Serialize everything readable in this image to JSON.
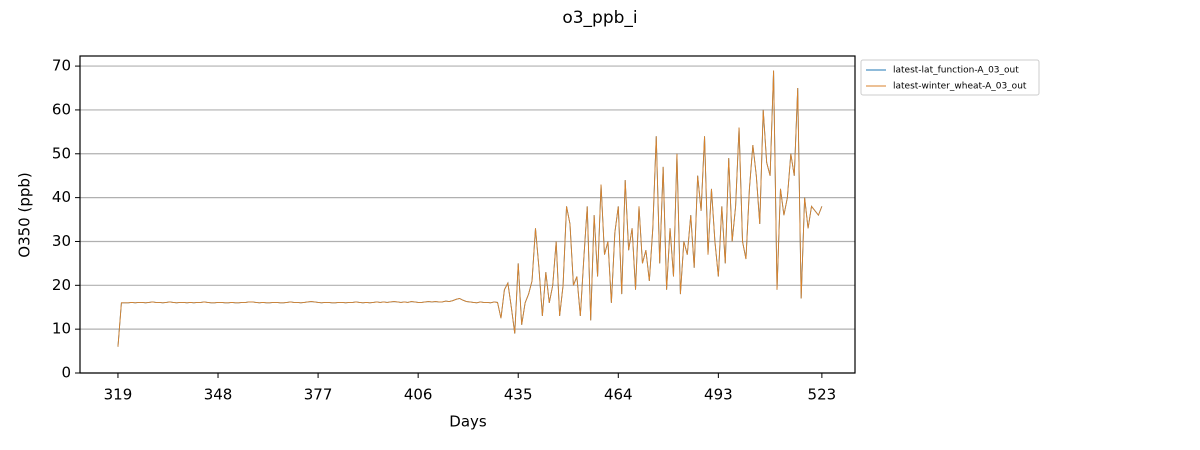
{
  "chart_data": {
    "type": "line",
    "title": "o3_ppb_i",
    "x_label": "Days",
    "y_label": "O350 (ppb)",
    "xlim": [
      308,
      532.6
    ],
    "ylim": [
      0,
      72.3
    ],
    "xticks": [
      319,
      348,
      377,
      406,
      435,
      464,
      493,
      523
    ],
    "yticks": [
      0,
      10,
      20,
      30,
      40,
      50,
      60,
      70
    ],
    "grid": true,
    "legend": "outside upper right",
    "x": [
      319,
      320,
      321,
      322,
      323,
      324,
      325,
      326,
      327,
      328,
      329,
      330,
      331,
      332,
      333,
      334,
      335,
      336,
      337,
      338,
      339,
      340,
      341,
      342,
      343,
      344,
      345,
      346,
      347,
      348,
      349,
      350,
      351,
      352,
      353,
      354,
      355,
      356,
      357,
      358,
      359,
      360,
      361,
      362,
      363,
      364,
      365,
      366,
      367,
      368,
      369,
      370,
      371,
      372,
      373,
      374,
      375,
      376,
      377,
      378,
      379,
      380,
      381,
      382,
      383,
      384,
      385,
      386,
      387,
      388,
      389,
      390,
      391,
      392,
      393,
      394,
      395,
      396,
      397,
      398,
      399,
      400,
      401,
      402,
      403,
      404,
      405,
      406,
      407,
      408,
      409,
      410,
      411,
      412,
      413,
      414,
      415,
      416,
      417,
      418,
      419,
      420,
      421,
      422,
      423,
      424,
      425,
      426,
      427,
      428,
      429,
      430,
      431,
      432,
      433,
      434,
      435,
      436,
      437,
      438,
      439,
      440,
      441,
      442,
      443,
      444,
      445,
      446,
      447,
      448,
      449,
      450,
      451,
      452,
      453,
      454,
      455,
      456,
      457,
      458,
      459,
      460,
      461,
      462,
      463,
      464,
      465,
      466,
      467,
      468,
      469,
      470,
      471,
      472,
      473,
      474,
      475,
      476,
      477,
      478,
      479,
      480,
      481,
      482,
      483,
      484,
      485,
      486,
      487,
      488,
      489,
      490,
      491,
      492,
      493,
      494,
      495,
      496,
      497,
      498,
      499,
      500,
      501,
      502,
      503,
      504,
      505,
      506,
      507,
      508,
      509,
      510,
      511,
      512,
      513,
      514,
      515,
      516,
      517,
      518,
      519,
      520,
      521,
      522,
      523
    ],
    "series": [
      {
        "name": "latest-lat_function-A_03_out",
        "color": "#1f77b4",
        "values": [
          6,
          16,
          16.0,
          16.0,
          16.1,
          16.0,
          16.1,
          16.1,
          16.0,
          16.1,
          16.2,
          16.1,
          16.1,
          16.0,
          16.1,
          16.2,
          16.1,
          16.0,
          16.1,
          16.1,
          16.0,
          16.1,
          16.0,
          16.1,
          16.1,
          16.2,
          16.1,
          16.0,
          16.0,
          16.1,
          16.1,
          16.0,
          16.0,
          16.1,
          16.0,
          16.0,
          16.1,
          16.1,
          16.2,
          16.2,
          16.1,
          16.0,
          16.1,
          16.0,
          16.0,
          16.1,
          16.1,
          16.0,
          16.0,
          16.1,
          16.2,
          16.1,
          16.1,
          16.0,
          16.1,
          16.2,
          16.3,
          16.2,
          16.1,
          16.0,
          16.1,
          16.1,
          16.0,
          16.0,
          16.1,
          16.1,
          16.0,
          16.1,
          16.1,
          16.2,
          16.1,
          16.0,
          16.1,
          16.0,
          16.1,
          16.2,
          16.1,
          16.2,
          16.1,
          16.2,
          16.3,
          16.2,
          16.1,
          16.2,
          16.1,
          16.3,
          16.2,
          16.1,
          16.1,
          16.2,
          16.3,
          16.2,
          16.3,
          16.2,
          16.2,
          16.4,
          16.3,
          16.5,
          16.8,
          17.0,
          16.6,
          16.3,
          16.2,
          16.1,
          16.0,
          16.2,
          16.1,
          16.1,
          16.0,
          16.2,
          16.1,
          12.5,
          19,
          20.5,
          15,
          9,
          25,
          11,
          16,
          18,
          21,
          33,
          24,
          13,
          23,
          16,
          20,
          30,
          13,
          20,
          38,
          34,
          20,
          22,
          13,
          26,
          38,
          12,
          36,
          22,
          43,
          27,
          30,
          16,
          32,
          38,
          18,
          44,
          28,
          33,
          19,
          38,
          25,
          28,
          21,
          33,
          54,
          25,
          47,
          19,
          33,
          22,
          50,
          18,
          30,
          27,
          36,
          24,
          45,
          37,
          54,
          27,
          42,
          30,
          22,
          38,
          25,
          49,
          30,
          38,
          56,
          30,
          26,
          42,
          52,
          45,
          34,
          60,
          48,
          45,
          69,
          19,
          42,
          36,
          40,
          50,
          45,
          65,
          17,
          40,
          33,
          38,
          37,
          36,
          38
        ]
      },
      {
        "name": "latest-winter_wheat-A_03_out",
        "color": "#d9822b",
        "values": [
          6,
          16,
          16.0,
          16.0,
          16.1,
          16.0,
          16.1,
          16.1,
          16.0,
          16.1,
          16.2,
          16.1,
          16.1,
          16.0,
          16.1,
          16.2,
          16.1,
          16.0,
          16.1,
          16.1,
          16.0,
          16.1,
          16.0,
          16.1,
          16.1,
          16.2,
          16.1,
          16.0,
          16.0,
          16.1,
          16.1,
          16.0,
          16.0,
          16.1,
          16.0,
          16.0,
          16.1,
          16.1,
          16.2,
          16.2,
          16.1,
          16.0,
          16.1,
          16.0,
          16.0,
          16.1,
          16.1,
          16.0,
          16.0,
          16.1,
          16.2,
          16.1,
          16.1,
          16.0,
          16.1,
          16.2,
          16.3,
          16.2,
          16.1,
          16.0,
          16.1,
          16.1,
          16.0,
          16.0,
          16.1,
          16.1,
          16.0,
          16.1,
          16.1,
          16.2,
          16.1,
          16.0,
          16.1,
          16.0,
          16.1,
          16.2,
          16.1,
          16.2,
          16.1,
          16.2,
          16.3,
          16.2,
          16.1,
          16.2,
          16.1,
          16.3,
          16.2,
          16.1,
          16.1,
          16.2,
          16.3,
          16.2,
          16.3,
          16.2,
          16.2,
          16.4,
          16.3,
          16.5,
          16.8,
          17.0,
          16.6,
          16.3,
          16.2,
          16.1,
          16.0,
          16.2,
          16.1,
          16.1,
          16.0,
          16.2,
          16.1,
          12.5,
          19,
          20.5,
          15,
          9,
          25,
          11,
          16,
          18,
          21,
          33,
          24,
          13,
          23,
          16,
          20,
          30,
          13,
          20,
          38,
          34,
          20,
          22,
          13,
          26,
          38,
          12,
          36,
          22,
          43,
          27,
          30,
          16,
          32,
          38,
          18,
          44,
          28,
          33,
          19,
          38,
          25,
          28,
          21,
          33,
          54,
          25,
          47,
          19,
          33,
          22,
          50,
          18,
          30,
          27,
          36,
          24,
          45,
          37,
          54,
          27,
          42,
          30,
          22,
          38,
          25,
          49,
          30,
          38,
          56,
          30,
          26,
          42,
          52,
          45,
          34,
          60,
          48,
          45,
          69,
          19,
          42,
          36,
          40,
          50,
          45,
          65,
          17,
          40,
          33,
          38,
          37,
          36,
          38
        ]
      }
    ]
  }
}
